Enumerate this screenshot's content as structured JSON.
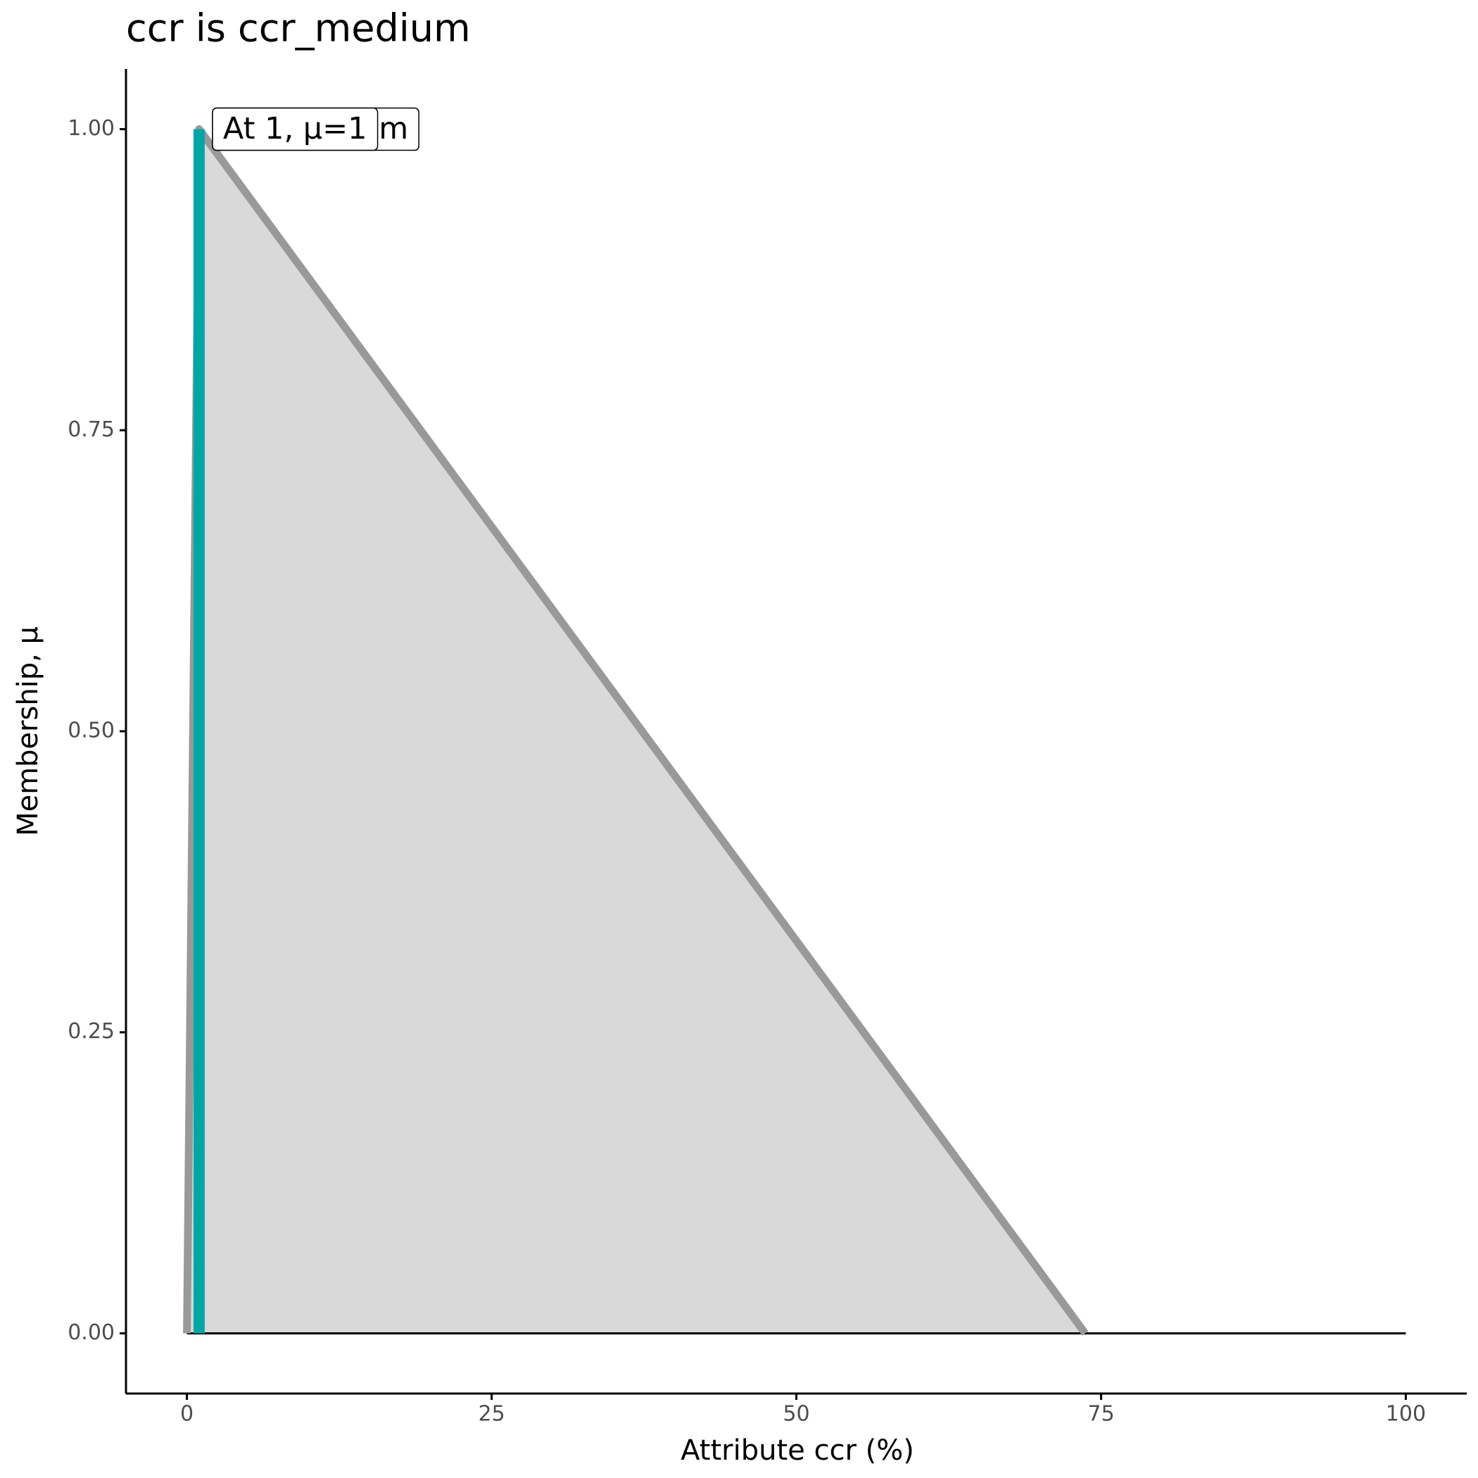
{
  "chart_data": {
    "type": "line",
    "title": "ccr is ccr_medium",
    "xlabel": "Attribute ccr (%)",
    "ylabel": "Membership, μ",
    "xlim": [
      -5,
      105
    ],
    "ylim": [
      -0.05,
      1.05
    ],
    "xticks": [
      0,
      25,
      50,
      75,
      100
    ],
    "yticks": [
      {
        "value": 0,
        "label": "0.00"
      },
      {
        "value": 0.25,
        "label": "0.25"
      },
      {
        "value": 0.5,
        "label": "0.50"
      },
      {
        "value": 0.75,
        "label": "0.75"
      },
      {
        "value": 1,
        "label": "1.00"
      }
    ],
    "membership": {
      "x": [
        0,
        1,
        73.7
      ],
      "y": [
        0,
        1,
        0
      ],
      "color": "#999999",
      "fill": "#d9d9d9"
    },
    "baseline": {
      "x": [
        0,
        100
      ],
      "y": [
        0,
        0
      ],
      "color": "#000000"
    },
    "input": {
      "x": 1,
      "y": 1,
      "color": "#00a6a6"
    },
    "annotations": [
      {
        "text": "ccr_medium",
        "x": 1,
        "y": 1
      },
      {
        "text": "At 1, μ=1",
        "x": 1,
        "y": 1
      }
    ]
  }
}
